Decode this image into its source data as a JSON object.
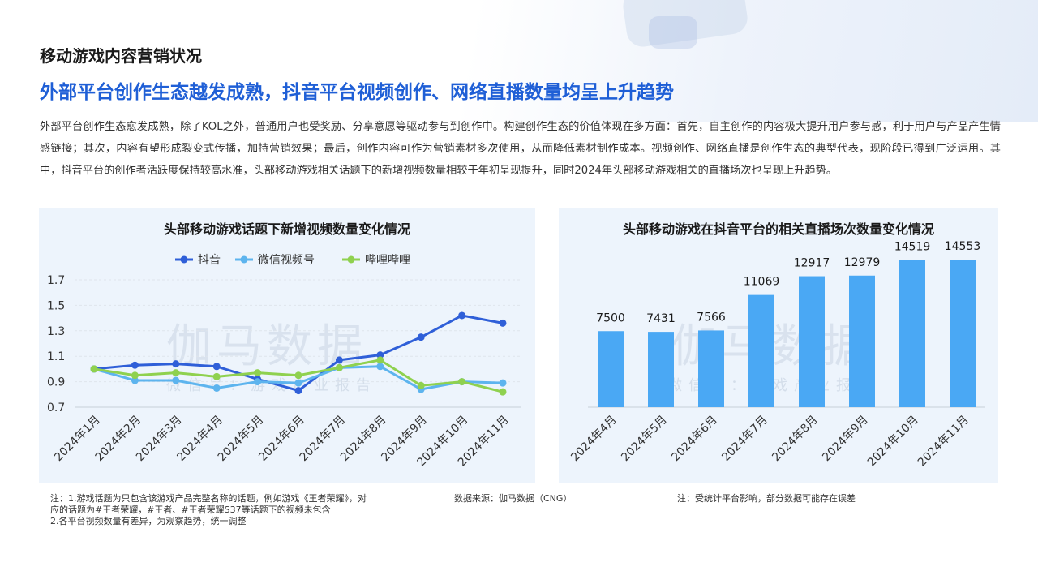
{
  "page": {
    "section_title": "移动游戏内容营销状况",
    "headline": "外部平台创作生态越发成熟，抖音平台视频创作、网络直播数量均呈上升趋势",
    "body": "外部平台创作生态愈发成熟，除了KOL之外，普通用户也受奖励、分享意愿等驱动参与到创作中。构建创作生态的价值体现在多方面：首先，自主创作的内容极大提升用户参与感，利于用户与产品产生情感链接；其次，内容有望形成裂变式传播，加持营销效果；最后，创作内容可作为营销素材多次使用，从而降低素材制作成本。视频创作、网络直播是创作生态的典型代表，现阶段已得到广泛运用。其中，抖音平台的创作者活跃度保持较高水准，头部移动游戏相关话题下的新增视频数量相较于年初呈现提升，同时2024年头部移动游戏相关的直播场次也呈现上升趋势。"
  },
  "watermark": {
    "main": "伽马数据",
    "sub": "微信号：游戏产业报告"
  },
  "notes": {
    "left_lines": [
      "注：1.游戏话题为只包含该游戏产品完整名称的话题，例如游戏《王者荣耀》，对",
      "应的话题为#王者荣耀，#王者、#王者荣耀S37等话题下的视频未包含",
      "2.各平台视频数量有差异，为观察趋势，统一调整"
    ],
    "source": "数据来源：伽马数据（CNG）",
    "right": "注：受统计平台影响，部分数据可能存在误差"
  },
  "chart_data": [
    {
      "type": "line",
      "title": "头部移动游戏话题下新增视频数量变化情况",
      "categories": [
        "2024年1月",
        "2024年2月",
        "2024年3月",
        "2024年4月",
        "2024年5月",
        "2024年6月",
        "2024年7月",
        "2024年8月",
        "2024年9月",
        "2024年10月",
        "2024年11月"
      ],
      "series": [
        {
          "name": "抖音",
          "color": "#2f5fd8",
          "values": [
            1.0,
            1.03,
            1.04,
            1.02,
            0.92,
            0.83,
            1.07,
            1.11,
            1.25,
            1.42,
            1.36
          ]
        },
        {
          "name": "微信视频号",
          "color": "#5db4ee",
          "values": [
            1.0,
            0.91,
            0.91,
            0.85,
            0.9,
            0.89,
            1.01,
            1.02,
            0.84,
            0.9,
            0.89
          ]
        },
        {
          "name": "哔哩哔哩",
          "color": "#8fd14f",
          "values": [
            1.0,
            0.95,
            0.97,
            0.94,
            0.97,
            0.95,
            1.01,
            1.07,
            0.87,
            0.9,
            0.82
          ]
        }
      ],
      "y_ticks": [
        "1.7",
        "1.5",
        "1.3",
        "1.1",
        "0.9",
        "0.7"
      ],
      "ylim": [
        0.7,
        1.7
      ],
      "grid": true,
      "legend": "top-center"
    },
    {
      "type": "bar",
      "title": "头部移动游戏在抖音平台的相关直播场次数量变化情况",
      "categories": [
        "2024年4月",
        "2024年5月",
        "2024年6月",
        "2024年7月",
        "2024年8月",
        "2024年9月",
        "2024年10月",
        "2024年11月"
      ],
      "values": [
        7500,
        7431,
        7566,
        11069,
        12917,
        12979,
        14519,
        14553
      ],
      "labels": [
        "7500",
        "7431",
        "7566",
        "11069",
        "12917",
        "12979",
        "14519",
        "14553"
      ],
      "color": "#4aa8f4",
      "ylim": [
        0,
        16000
      ]
    }
  ]
}
